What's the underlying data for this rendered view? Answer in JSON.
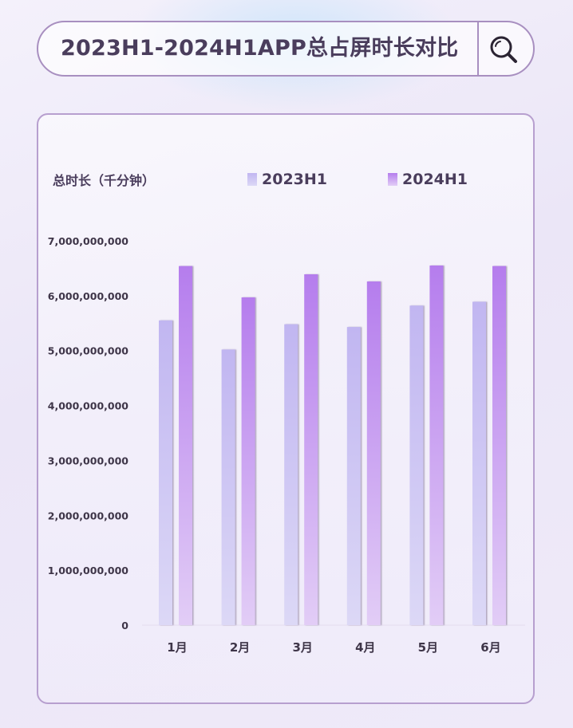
{
  "header": {
    "title": "2023H1-2024H1APP总占屏时长对比"
  },
  "colors": {
    "series_2023": "#c4bdf2",
    "series_2024": "#b98aec",
    "border": "#a88fc0",
    "text": "#4a3d5c"
  },
  "chart_data": {
    "type": "bar",
    "title": "2023H1-2024H1APP总占屏时长对比",
    "ylabel": "总时长（千分钟）",
    "xlabel": "",
    "categories": [
      "1月",
      "2月",
      "3月",
      "4月",
      "5月",
      "6月"
    ],
    "series": [
      {
        "name": "2023H1",
        "values": [
          5550000000,
          5020000000,
          5480000000,
          5430000000,
          5820000000,
          5890000000
        ]
      },
      {
        "name": "2024H1",
        "values": [
          6540000000,
          5970000000,
          6390000000,
          6260000000,
          6550000000,
          6540000000
        ]
      }
    ],
    "ylim": [
      0,
      7000000000
    ],
    "yticks": [
      "0",
      "1,000,000,000",
      "2,000,000,000",
      "3,000,000,000",
      "4,000,000,000",
      "5,000,000,000",
      "6,000,000,000",
      "7,000,000,000"
    ],
    "legend_position": "top",
    "grid": false
  }
}
